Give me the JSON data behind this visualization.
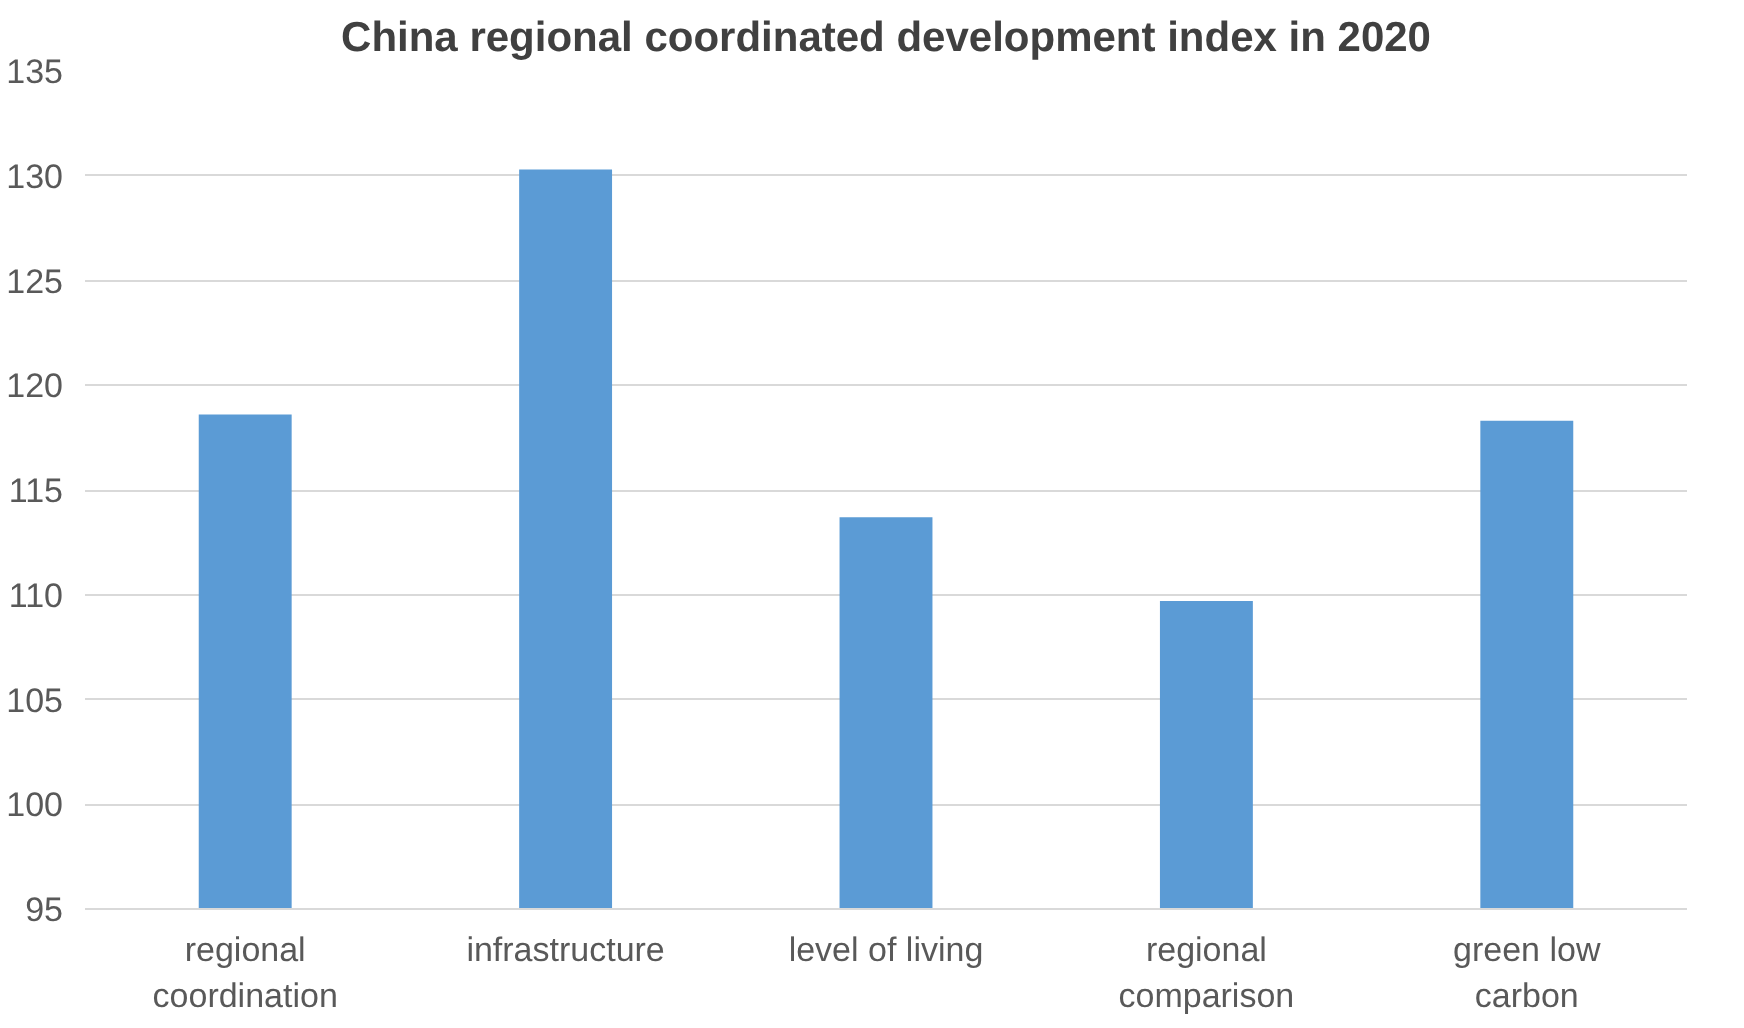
{
  "chart_data": {
    "type": "bar",
    "title": "China regional coordinated development index in 2020",
    "categories": [
      "regional coordination",
      "infrastructure",
      "level of living",
      "regional comparison",
      "green low carbon"
    ],
    "values": [
      118.6,
      130.3,
      113.7,
      109.7,
      118.3
    ],
    "color": "#5b9bd5",
    "ylim": [
      95,
      135
    ],
    "yticks": [
      95,
      100,
      105,
      110,
      115,
      120,
      125,
      130,
      135
    ],
    "grid": "y"
  }
}
